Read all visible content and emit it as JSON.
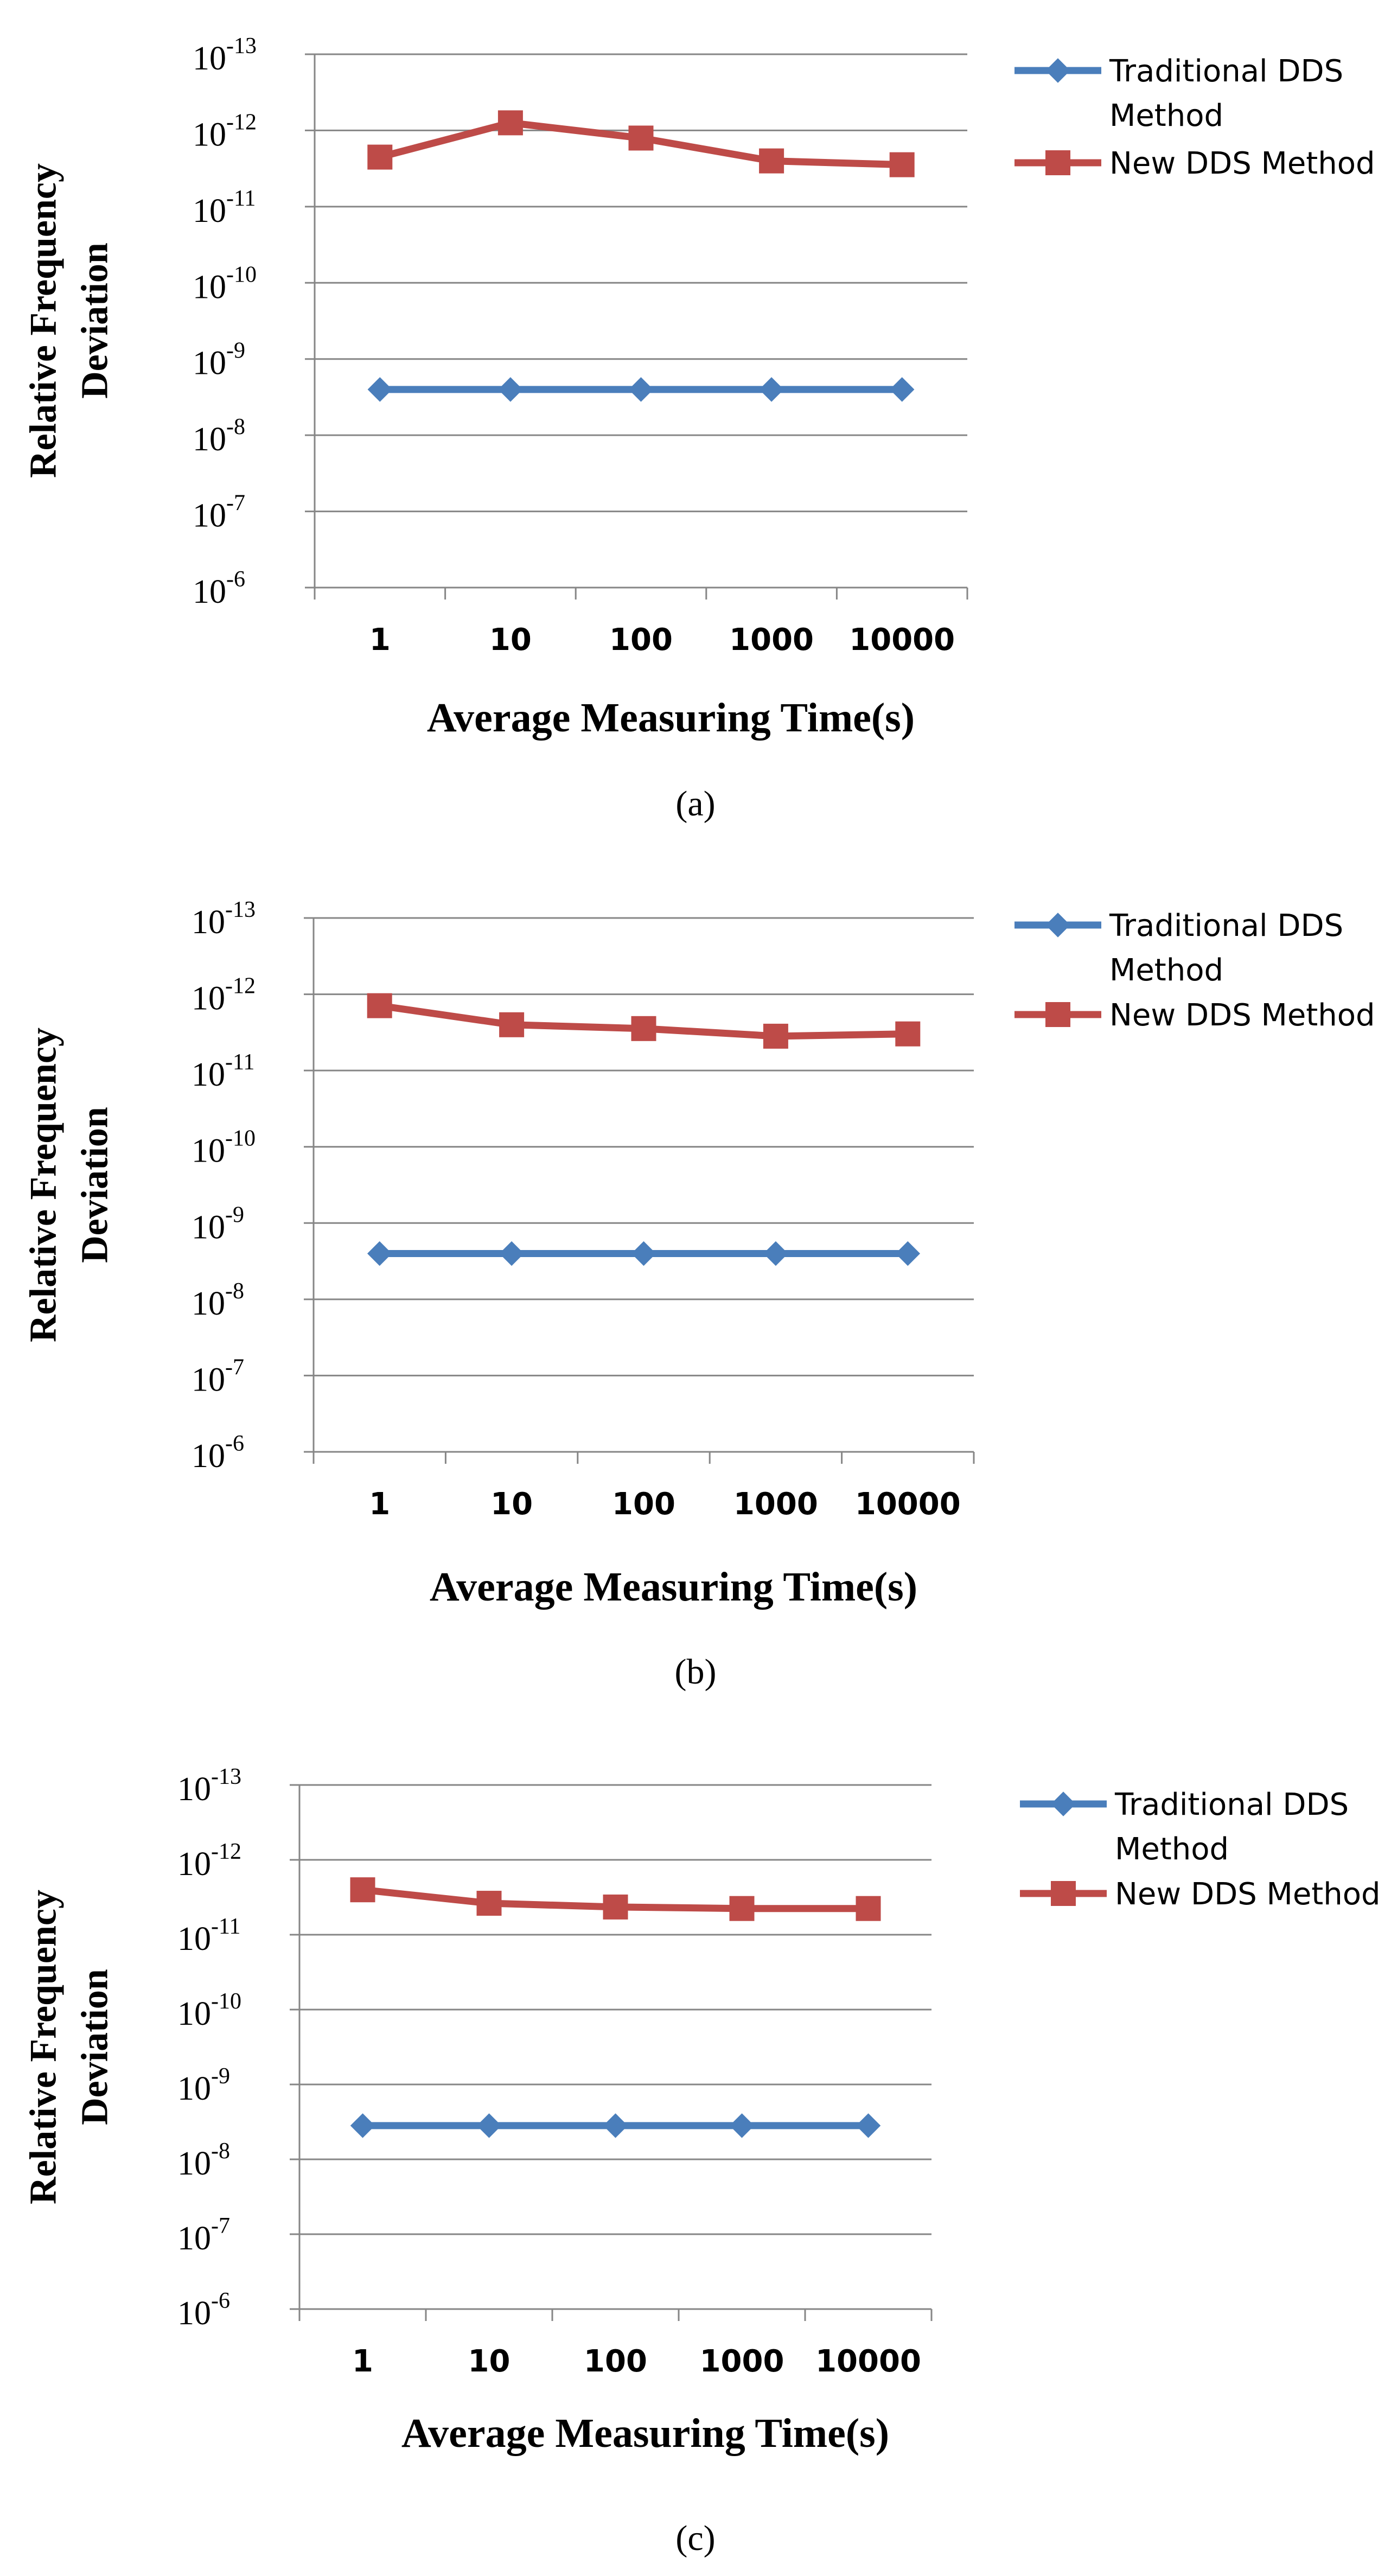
{
  "colors": {
    "traditional": "#4A7EBB",
    "new": "#BE4B48",
    "grid": "#868686",
    "text": "#000000"
  },
  "chart_data": [
    {
      "type": "line",
      "panel_label": "(a)",
      "xlabel": "Average Measuring Time(s)",
      "ylabel": [
        "Relative Frequency",
        "Deviation"
      ],
      "x_scale": "log",
      "categories": [
        "1",
        "10",
        "100",
        "1000",
        "10000"
      ],
      "y_scale": "log",
      "y_ticks": [
        {
          "base": "10",
          "exp": "-13"
        },
        {
          "base": "10",
          "exp": "-12"
        },
        {
          "base": "10",
          "exp": "-11"
        },
        {
          "base": "10",
          "exp": "-10"
        },
        {
          "base": "10",
          "exp": "-9"
        },
        {
          "base": "10",
          "exp": "-8"
        },
        {
          "base": "10",
          "exp": "-7"
        },
        {
          "base": "10",
          "exp": "-6"
        }
      ],
      "ylim_exponent": [
        -13,
        -6
      ],
      "series": [
        {
          "name": "Traditional DDS Method",
          "marker": "diamond",
          "log10_values": [
            -8.6,
            -8.6,
            -8.6,
            -8.6,
            -8.6
          ]
        },
        {
          "name": "New DDS Method",
          "marker": "square",
          "log10_values": [
            -11.65,
            -12.1,
            -11.9,
            -11.6,
            -11.55
          ]
        }
      ],
      "legend": [
        "Traditional DDS Method",
        "New DDS Method"
      ],
      "legend_position": "right"
    },
    {
      "type": "line",
      "panel_label": "(b)",
      "xlabel": "Average Measuring Time(s)",
      "ylabel": [
        "Relative Frequency",
        "Deviation"
      ],
      "x_scale": "log",
      "categories": [
        "1",
        "10",
        "100",
        "1000",
        "10000"
      ],
      "y_scale": "log",
      "y_ticks": [
        {
          "base": "10",
          "exp": "-13"
        },
        {
          "base": "10",
          "exp": "-12"
        },
        {
          "base": "10",
          "exp": "-11"
        },
        {
          "base": "10",
          "exp": "-10"
        },
        {
          "base": "10",
          "exp": "-9"
        },
        {
          "base": "10",
          "exp": "-8"
        },
        {
          "base": "10",
          "exp": "-7"
        },
        {
          "base": "10",
          "exp": "-6"
        }
      ],
      "ylim_exponent": [
        -13,
        -6
      ],
      "series": [
        {
          "name": "Traditional DDS Method",
          "marker": "diamond",
          "log10_values": [
            -8.6,
            -8.6,
            -8.6,
            -8.6,
            -8.6
          ]
        },
        {
          "name": "New DDS Method",
          "marker": "square",
          "log10_values": [
            -11.85,
            -11.6,
            -11.55,
            -11.45,
            -11.48
          ]
        }
      ],
      "legend": [
        "Traditional DDS Method",
        "New DDS Method"
      ],
      "legend_position": "right"
    },
    {
      "type": "line",
      "panel_label": "(c)",
      "xlabel": "Average Measuring Time(s)",
      "ylabel": [
        "Relative Frequency",
        "Deviation"
      ],
      "x_scale": "log",
      "categories": [
        "1",
        "10",
        "100",
        "1000",
        "10000"
      ],
      "y_scale": "log",
      "y_ticks": [
        {
          "base": "10",
          "exp": "-13"
        },
        {
          "base": "10",
          "exp": "-12"
        },
        {
          "base": "10",
          "exp": "-11"
        },
        {
          "base": "10",
          "exp": "-10"
        },
        {
          "base": "10",
          "exp": "-9"
        },
        {
          "base": "10",
          "exp": "-8"
        },
        {
          "base": "10",
          "exp": "-7"
        },
        {
          "base": "10",
          "exp": "-6"
        }
      ],
      "ylim_exponent": [
        -13,
        -6
      ],
      "series": [
        {
          "name": "Traditional DDS Method",
          "marker": "diamond",
          "log10_values": [
            -8.45,
            -8.45,
            -8.45,
            -8.45,
            -8.45
          ]
        },
        {
          "name": "New DDS Method",
          "marker": "square",
          "log10_values": [
            -11.6,
            -11.42,
            -11.37,
            -11.35,
            -11.35
          ]
        }
      ],
      "legend": [
        "Traditional DDS Method",
        "New DDS Method"
      ],
      "legend_position": "right"
    }
  ]
}
